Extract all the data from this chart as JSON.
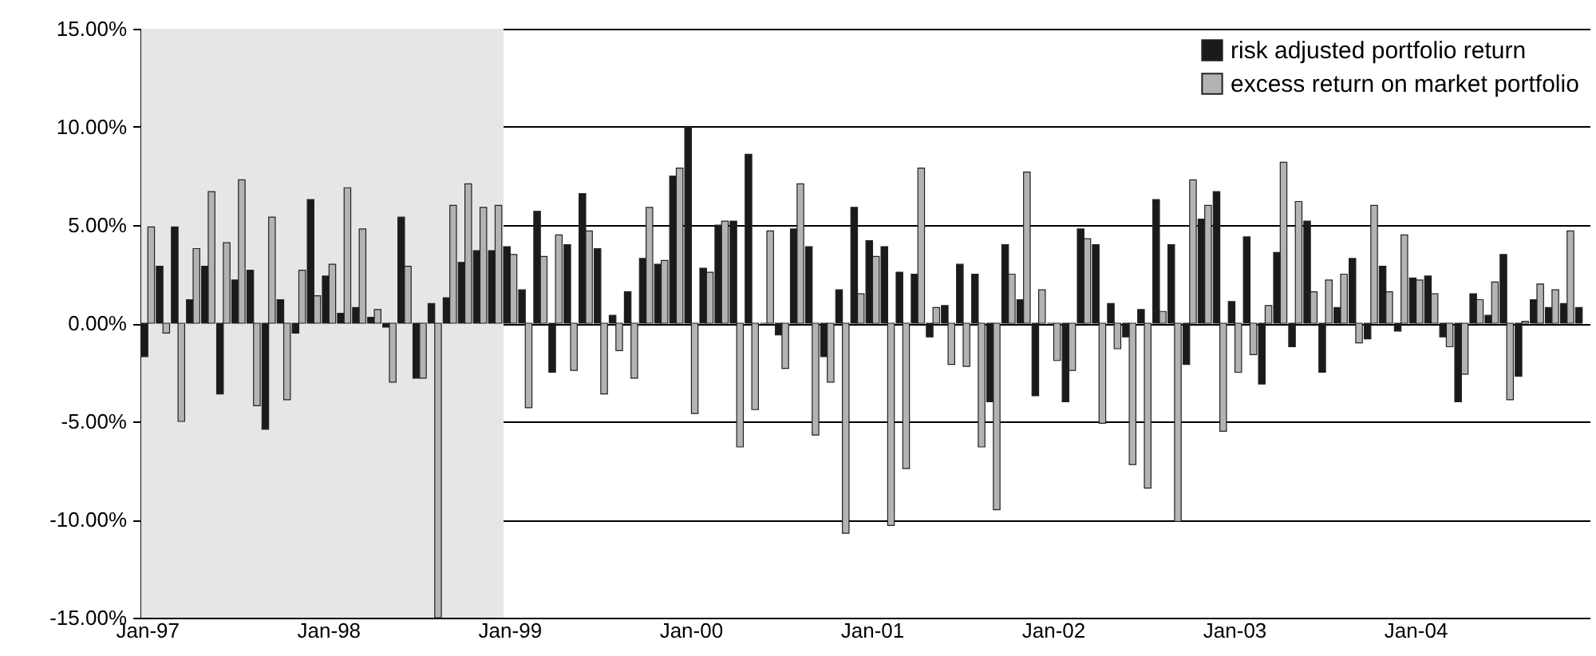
{
  "chart_data": {
    "type": "bar",
    "categories": [
      "Jan-97",
      null,
      null,
      null,
      null,
      null,
      null,
      null,
      null,
      null,
      null,
      null,
      "Jan-98",
      null,
      null,
      null,
      null,
      null,
      null,
      null,
      null,
      null,
      null,
      null,
      "Jan-99",
      null,
      null,
      null,
      null,
      null,
      null,
      null,
      null,
      null,
      null,
      null,
      "Jan-00",
      null,
      null,
      null,
      null,
      null,
      null,
      null,
      null,
      null,
      null,
      null,
      "Jan-01",
      null,
      null,
      null,
      null,
      null,
      null,
      null,
      null,
      null,
      null,
      null,
      "Jan-02",
      null,
      null,
      null,
      null,
      null,
      null,
      null,
      null,
      null,
      null,
      null,
      "Jan-03",
      null,
      null,
      null,
      null,
      null,
      null,
      null,
      null,
      null,
      null,
      null,
      "Jan-04",
      null,
      null,
      null,
      null,
      null,
      null,
      null,
      null,
      null,
      null,
      null
    ],
    "series": [
      {
        "name": "risk adjusted portfolio return",
        "color": "#1a1a1a",
        "values": [
          -1.7,
          2.9,
          4.9,
          1.2,
          2.9,
          -3.6,
          2.2,
          2.7,
          -5.4,
          1.2,
          -0.5,
          6.3,
          2.4,
          0.5,
          0.8,
          0.3,
          -0.2,
          5.4,
          -2.8,
          1.0,
          1.3,
          3.1,
          3.7,
          3.7,
          3.9,
          1.7,
          5.7,
          -2.5,
          4.0,
          6.6,
          3.8,
          0.4,
          1.6,
          3.3,
          3.0,
          7.5,
          10.0,
          2.8,
          5.0,
          5.2,
          8.6,
          0.0,
          -0.6,
          4.8,
          3.9,
          -1.7,
          1.7,
          5.9,
          4.2,
          3.9,
          2.6,
          2.5,
          -0.7,
          0.9,
          3.0,
          2.5,
          -4.0,
          4.0,
          1.2,
          -3.7,
          0.0,
          -4.0,
          4.8,
          4.0,
          1.0,
          -0.7,
          0.7,
          6.3,
          4.0,
          -2.1,
          5.3,
          6.7,
          1.1,
          4.4,
          -3.1,
          3.6,
          -1.2,
          5.2,
          -2.5,
          0.8,
          3.3,
          -0.8,
          2.9,
          -0.4,
          2.3,
          2.4,
          -0.7,
          -4.0,
          1.5,
          0.4,
          3.5,
          -2.7,
          1.2,
          0.8,
          1.0,
          0.8
        ]
      },
      {
        "name": "excess return on market portfolio",
        "color": "#b3b3b3",
        "values": [
          4.9,
          -0.5,
          -5.0,
          3.8,
          6.7,
          4.1,
          7.3,
          -4.2,
          5.4,
          -3.9,
          2.7,
          1.4,
          3.0,
          6.9,
          4.8,
          0.7,
          -3.0,
          2.9,
          -2.8,
          -15.0,
          6.0,
          7.1,
          5.9,
          6.0,
          3.5,
          -4.3,
          3.4,
          4.5,
          -2.4,
          4.7,
          -3.6,
          -1.4,
          -2.8,
          5.9,
          3.2,
          7.9,
          -4.6,
          2.6,
          5.2,
          -6.3,
          -4.4,
          4.7,
          -2.3,
          7.1,
          -5.7,
          -3.0,
          -10.7,
          1.5,
          3.4,
          -10.3,
          -7.4,
          7.9,
          0.8,
          -2.1,
          -2.2,
          -6.3,
          -9.5,
          2.5,
          7.7,
          1.7,
          -1.9,
          -2.4,
          4.3,
          -5.1,
          -1.3,
          -7.2,
          -8.4,
          0.6,
          -10.1,
          7.3,
          6.0,
          -5.5,
          -2.5,
          -1.6,
          0.9,
          8.2,
          6.2,
          1.6,
          2.2,
          2.5,
          -1.0,
          6.0,
          1.6,
          4.5,
          2.2,
          1.5,
          -1.2,
          -2.6,
          1.2,
          2.1,
          -3.9,
          0.1,
          2.0,
          1.7,
          4.7,
          null
        ]
      }
    ],
    "ylim": [
      -15,
      15
    ],
    "yticks": [
      {
        "value": -15,
        "label": "-15.00%"
      },
      {
        "value": -10,
        "label": "-10.00%"
      },
      {
        "value": -5,
        "label": "-5.00%"
      },
      {
        "value": 0,
        "label": "0.00%"
      },
      {
        "value": 5,
        "label": "5.00%"
      },
      {
        "value": 10,
        "label": "10.00%"
      },
      {
        "value": 15,
        "label": "15.00%"
      }
    ],
    "bands": [
      {
        "axis": "x",
        "from": "Jan-97",
        "to": "Jan-99",
        "color": "#e6e6e6"
      }
    ],
    "grid": "y",
    "legend": "top right"
  }
}
